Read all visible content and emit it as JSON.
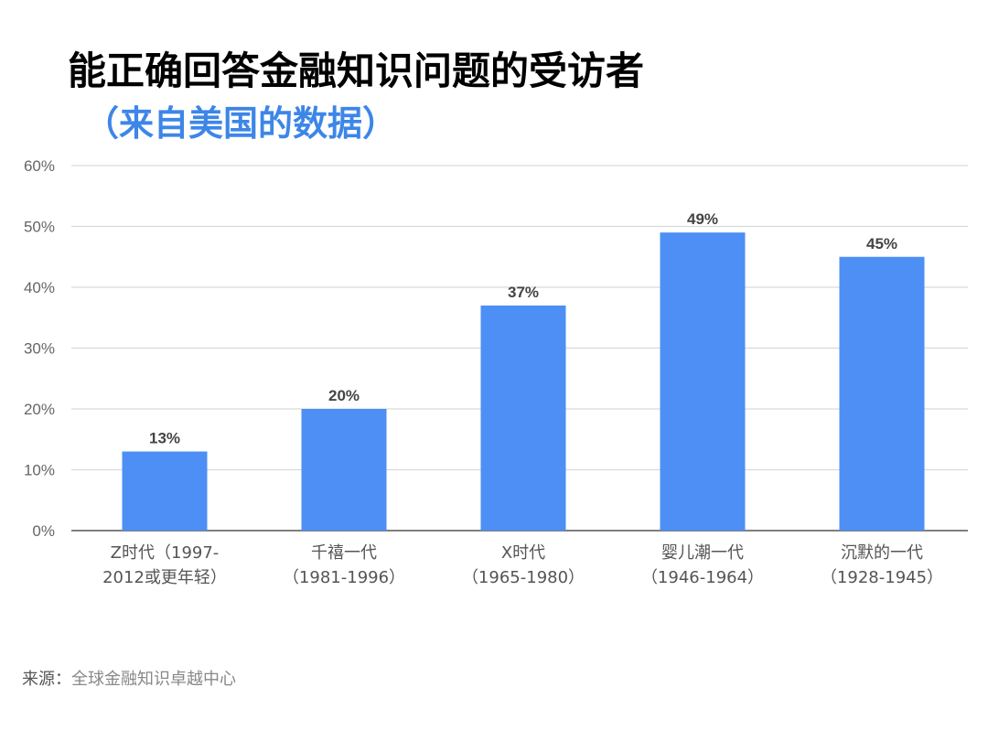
{
  "title": "能正确回答金融知识问题的受访者",
  "subtitle": "（来自美国的数据）",
  "source": {
    "label": "来源：",
    "value": "全球金融知识卓越中心"
  },
  "colors": {
    "bar": "#4d8ff5",
    "title_accent": "#3d86e8",
    "grid": "#d9d9d9"
  },
  "chart_data": {
    "type": "bar",
    "title": "能正确回答金融知识问题的受访者",
    "subtitle": "（来自美国的数据）",
    "categories": [
      [
        "Z时代（1997-",
        "2012或更年轻）"
      ],
      [
        "千禧一代",
        "（1981-1996）"
      ],
      [
        "X时代",
        "（1965-1980）"
      ],
      [
        "婴儿潮一代",
        "（1946-1964）"
      ],
      [
        "沉默的一代",
        "（1928-1945）"
      ]
    ],
    "values": [
      13,
      20,
      37,
      49,
      45
    ],
    "value_labels": [
      "13%",
      "20%",
      "37%",
      "49%",
      "45%"
    ],
    "ylim": [
      0,
      60
    ],
    "yticks": [
      0,
      10,
      20,
      30,
      40,
      50,
      60
    ],
    "ytick_labels": [
      "0%",
      "10%",
      "20%",
      "30%",
      "40%",
      "50%",
      "60%"
    ],
    "xlabel": "",
    "ylabel": "",
    "grid": true,
    "legend": "none"
  }
}
